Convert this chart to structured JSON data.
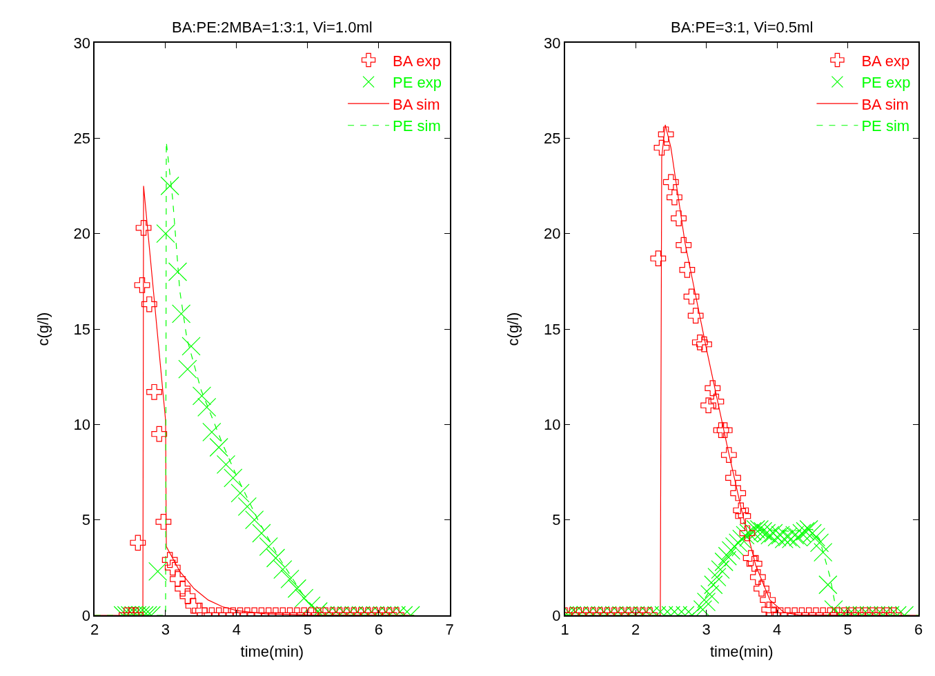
{
  "chart_data": [
    {
      "type": "scatter",
      "title": "BA:PE:2MBA=1:3:1, Vi=1.0ml",
      "xlabel": "time(min)",
      "ylabel": "c(g/l)",
      "xlim": [
        2,
        7
      ],
      "xticks": [
        2,
        3,
        4,
        5,
        6,
        7
      ],
      "ylim": [
        0,
        30
      ],
      "yticks": [
        0,
        5,
        10,
        15,
        20,
        25,
        30
      ],
      "legend": "top right",
      "series": [
        {
          "name": "BA exp",
          "type": "scatter",
          "marker": "cross",
          "color": "#ff0000",
          "x": [
            2.45,
            2.52,
            2.58,
            2.61,
            2.67,
            2.69,
            2.77,
            2.84,
            2.91,
            2.97,
            3.06,
            3.1,
            3.17,
            3.24,
            3.31,
            3.39,
            3.48,
            3.55,
            3.65,
            3.75,
            3.85,
            3.95,
            4.05,
            4.15,
            4.25,
            4.35,
            4.45,
            4.55,
            4.65,
            4.75,
            4.85,
            4.95,
            5.05,
            5.15,
            5.25,
            5.35,
            5.45,
            5.55,
            5.65,
            5.75,
            5.85,
            5.95,
            6.05,
            6.15,
            6.25
          ],
          "values": [
            0,
            0,
            0,
            3.8,
            17.3,
            20.3,
            16.3,
            11.7,
            9.5,
            4.9,
            2.9,
            2.5,
            1.9,
            1.4,
            1.0,
            0.5,
            0.25,
            0,
            0,
            0,
            0,
            0,
            0,
            0,
            0,
            0,
            0,
            0,
            0,
            0,
            0,
            0,
            0,
            0,
            0,
            0,
            0,
            0,
            0,
            0,
            0,
            0,
            0,
            0,
            0
          ]
        },
        {
          "name": "PE exp",
          "type": "scatter",
          "marker": "x",
          "color": "#00ff00",
          "x": [
            2.4,
            2.45,
            2.5,
            2.55,
            2.6,
            2.65,
            2.7,
            2.75,
            2.8,
            2.89,
            3.0,
            3.06,
            3.17,
            3.22,
            3.31,
            3.36,
            3.51,
            3.58,
            3.65,
            3.75,
            3.85,
            3.95,
            4.05,
            4.15,
            4.25,
            4.35,
            4.45,
            4.55,
            4.65,
            4.75,
            4.85,
            4.95,
            5.05,
            5.15,
            5.25,
            5.35,
            5.45,
            5.55,
            5.65,
            5.75,
            5.85,
            5.95,
            6.05,
            6.15,
            6.25,
            6.35,
            6.45
          ],
          "values": [
            0,
            0,
            0,
            0,
            0,
            0,
            0,
            0,
            0,
            2.3,
            20.0,
            22.5,
            18.0,
            15.8,
            12.9,
            14.1,
            11.5,
            10.9,
            9.6,
            8.8,
            7.9,
            7.2,
            6.4,
            5.7,
            5.0,
            4.3,
            3.6,
            3.0,
            2.4,
            1.9,
            1.4,
            0.9,
            0.5,
            0.2,
            0,
            0,
            0,
            0,
            0,
            0,
            0,
            0,
            0,
            0,
            0,
            0,
            0
          ]
        },
        {
          "name": "BA sim",
          "type": "line",
          "line_style": "solid",
          "color": "#ff0000",
          "x": [
            2.0,
            2.68,
            2.69,
            3.0,
            3.01,
            3.2,
            3.4,
            3.6,
            3.8,
            4.0,
            4.4,
            5.0,
            6.5
          ],
          "values": [
            0,
            0,
            22.5,
            10.2,
            3.6,
            2.3,
            1.4,
            0.8,
            0.45,
            0.25,
            0.08,
            0.02,
            0
          ]
        },
        {
          "name": "PE sim",
          "type": "line",
          "line_style": "dashed",
          "color": "#00ff00",
          "x": [
            2.0,
            3.0,
            3.01,
            3.1,
            3.2,
            3.3,
            3.5,
            3.8,
            4.0,
            4.3,
            4.6,
            5.0,
            5.2,
            6.5
          ],
          "values": [
            0,
            0,
            24.8,
            21.8,
            17,
            14.5,
            11.8,
            9.0,
            7.3,
            5.0,
            3.0,
            0.7,
            0,
            0
          ]
        }
      ]
    },
    {
      "type": "scatter",
      "title": "BA:PE=3:1, Vi=0.5ml",
      "xlabel": "time(min)",
      "ylabel": "c(g/l)",
      "xlim": [
        1,
        6
      ],
      "xticks": [
        1,
        2,
        3,
        4,
        5,
        6
      ],
      "ylim": [
        0,
        30
      ],
      "yticks": [
        0,
        5,
        10,
        15,
        20,
        25,
        30
      ],
      "legend": "top right",
      "series": [
        {
          "name": "BA exp",
          "type": "scatter",
          "marker": "cross",
          "color": "#ff0000",
          "x": [
            1.0,
            1.1,
            1.2,
            1.3,
            1.4,
            1.5,
            1.6,
            1.7,
            1.8,
            1.9,
            2.0,
            2.1,
            2.2,
            2.32,
            2.37,
            2.43,
            2.5,
            2.55,
            2.61,
            2.68,
            2.73,
            2.79,
            2.85,
            2.91,
            2.97,
            3.03,
            3.09,
            3.14,
            3.21,
            3.26,
            3.32,
            3.38,
            3.45,
            3.49,
            3.52,
            3.58,
            3.63,
            3.68,
            3.73,
            3.78,
            3.87,
            3.89,
            3.95,
            4.05,
            4.15,
            4.25,
            4.35,
            4.45,
            4.55,
            4.65,
            4.75,
            4.85,
            4.95,
            5.05,
            5.15,
            5.25,
            5.35,
            5.45,
            5.55,
            5.65
          ],
          "values": [
            0,
            0,
            0,
            0,
            0,
            0,
            0,
            0,
            0,
            0,
            0,
            0,
            0,
            18.7,
            24.5,
            25.2,
            22.7,
            21.9,
            20.8,
            19.4,
            18.1,
            16.7,
            15.7,
            14.3,
            14.2,
            11.0,
            11.9,
            11.2,
            9.7,
            9.7,
            8.4,
            7.2,
            6.4,
            5.5,
            5.2,
            4.3,
            3.0,
            2.7,
            2.0,
            1.4,
            0.8,
            0.3,
            0,
            0,
            0,
            0,
            0,
            0,
            0,
            0,
            0,
            0,
            0,
            0,
            0,
            0,
            0,
            0,
            0,
            0
          ]
        },
        {
          "name": "PE exp",
          "type": "scatter",
          "marker": "x",
          "color": "#00ff00",
          "x": [
            1.0,
            1.05,
            1.1,
            1.2,
            1.3,
            1.4,
            1.5,
            1.6,
            1.7,
            1.8,
            1.9,
            2.0,
            2.1,
            2.2,
            2.3,
            2.4,
            2.5,
            2.6,
            2.7,
            2.8,
            2.95,
            3.0,
            3.05,
            3.1,
            3.15,
            3.2,
            3.25,
            3.3,
            3.35,
            3.4,
            3.45,
            3.5,
            3.55,
            3.6,
            3.65,
            3.7,
            3.75,
            3.8,
            3.85,
            3.9,
            3.95,
            4.0,
            4.05,
            4.1,
            4.15,
            4.2,
            4.25,
            4.3,
            4.35,
            4.4,
            4.45,
            4.5,
            4.55,
            4.6,
            4.65,
            4.72,
            4.8,
            4.9,
            5.0,
            5.1,
            5.2,
            5.3,
            5.4,
            5.5,
            5.6,
            5.7,
            5.8
          ],
          "values": [
            0,
            0,
            0,
            0,
            0,
            0,
            0,
            0,
            0,
            0,
            0,
            0,
            0,
            0,
            0,
            0,
            0,
            0,
            0,
            0,
            0.3,
            0.7,
            1.1,
            1.6,
            2.0,
            2.4,
            2.8,
            3.1,
            3.4,
            3.6,
            3.8,
            4.0,
            4.2,
            4.3,
            4.4,
            4.5,
            4.5,
            4.4,
            4.3,
            4.2,
            4.3,
            4.1,
            4.2,
            4.0,
            4.1,
            4.0,
            4.2,
            4.1,
            4.3,
            4.4,
            4.5,
            4.3,
            4.1,
            3.8,
            3.3,
            1.6,
            0.3,
            0,
            0,
            0,
            0,
            0,
            0,
            0,
            0,
            0,
            0
          ]
        },
        {
          "name": "BA sim",
          "type": "line",
          "line_style": "solid",
          "color": "#ff0000",
          "x": [
            1.0,
            2.35,
            2.37,
            2.42,
            2.5,
            2.7,
            3.0,
            3.3,
            3.5,
            3.7,
            3.9,
            4.1,
            4.3,
            6.0
          ],
          "values": [
            0,
            0,
            24,
            25.7,
            24.5,
            19.5,
            14.0,
            8.8,
            5.5,
            2.6,
            0.8,
            0.15,
            0.02,
            0
          ]
        },
        {
          "name": "PE sim",
          "type": "line",
          "line_style": "dashed",
          "color": "#00ff00",
          "x": [
            1.0,
            2.8,
            3.0,
            3.3,
            3.6,
            3.8,
            4.2,
            4.5,
            4.6,
            4.75,
            4.85,
            6.0
          ],
          "values": [
            0,
            0,
            1.0,
            2.8,
            4.2,
            4.5,
            4.4,
            4.5,
            4.0,
            2.0,
            0,
            0
          ]
        }
      ]
    }
  ]
}
